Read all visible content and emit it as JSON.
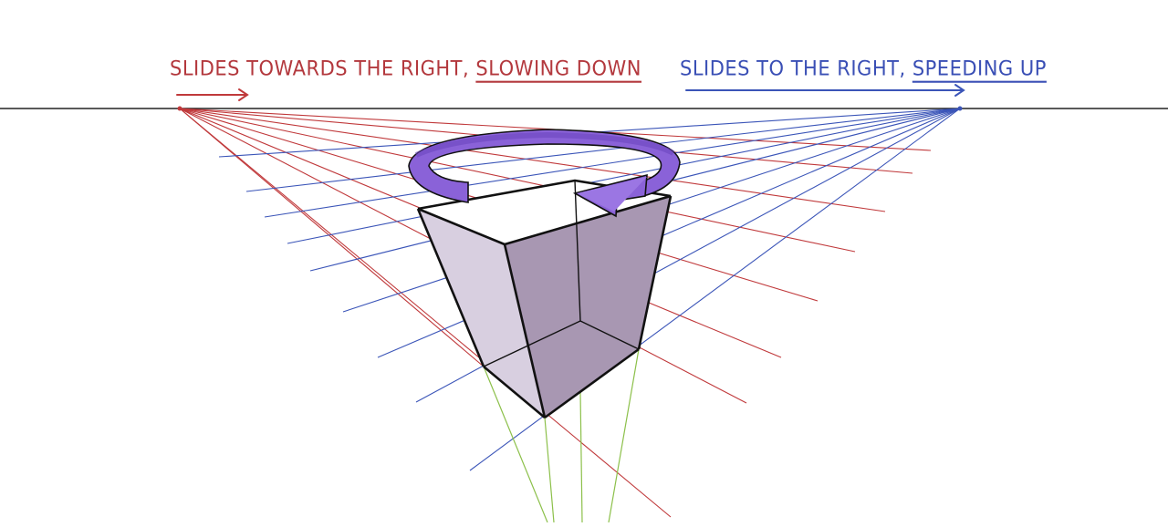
{
  "labels": {
    "left_main": "SLIDES TOWARDS THE RIGHT,",
    "left_emph": "SLOWING DOWN",
    "right_main": "SLIDES TO THE RIGHT,",
    "right_emph": "SPEEDING UP"
  },
  "colors": {
    "horizon": "#222222",
    "left_vp_lines": "#c0393b",
    "right_vp_lines": "#3b55b8",
    "vertical_vp_lines": "#8cc04a",
    "box_left_face": "#d8cfe0",
    "box_right_face": "#a897b2",
    "box_top_face": "#ffffff",
    "rotation_arrow": "#8a62d8",
    "rotation_arrow_dark": "#6a44bd"
  },
  "icons": {
    "left_arrow": "arrow-right-icon",
    "right_arrow": "arrow-right-icon",
    "rotation": "curved-rotation-arrow-icon"
  }
}
